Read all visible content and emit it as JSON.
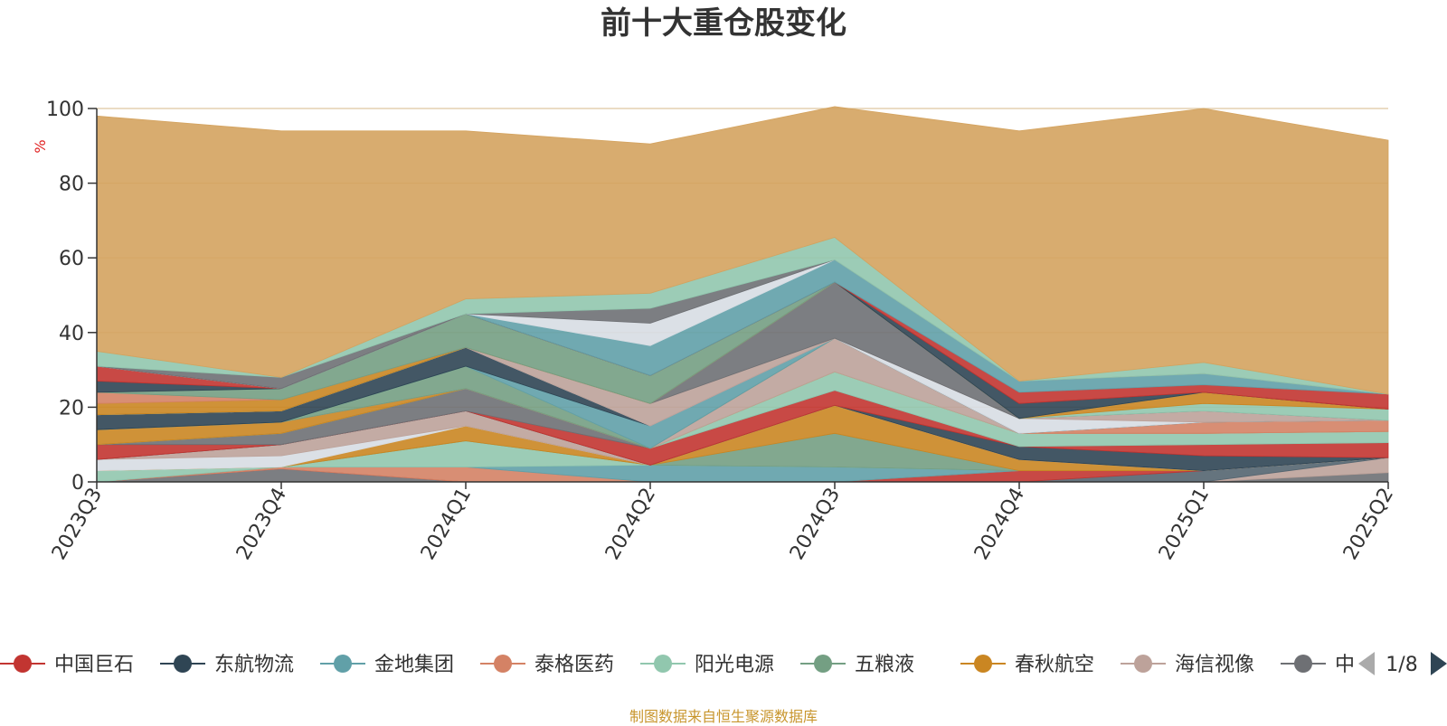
{
  "title": "前十大重仓股变化",
  "source_note": "制图数据来自恒生聚源数据库",
  "legend": {
    "page_indicator": "1/8",
    "prev_icon": "triangle-left-icon",
    "next_icon": "triangle-right-icon",
    "items": [
      {
        "label": "中国巨石",
        "color": "#c23531"
      },
      {
        "label": "东航物流",
        "color": "#2f4554"
      },
      {
        "label": "金地集团",
        "color": "#61a0a8"
      },
      {
        "label": "泰格医药",
        "color": "#d48265"
      },
      {
        "label": "阳光电源",
        "color": "#91c7ae"
      },
      {
        "label": "五粮液",
        "color": "#749f83"
      },
      {
        "label": "春秋航空",
        "color": "#ca8622"
      },
      {
        "label": "海信视像",
        "color": "#bda29a"
      },
      {
        "label": "中",
        "color": "#6e7074"
      }
    ]
  },
  "chart_data": {
    "type": "area",
    "stacked": true,
    "title": "前十大重仓股变化",
    "ylabel": "%",
    "ylim": [
      0,
      100
    ],
    "yticks": [
      0,
      20,
      40,
      60,
      80,
      100
    ],
    "grid": true,
    "legend_position": "bottom",
    "categories": [
      "2023Q3",
      "2023Q4",
      "2024Q1",
      "2024Q2",
      "2024Q3",
      "2024Q4",
      "2025Q1",
      "2025Q2"
    ],
    "series": [
      {
        "color": "#6e7074",
        "values": [
          0,
          3.5,
          0,
          0,
          0,
          0,
          0,
          2.5
        ]
      },
      {
        "color": "#bda29a",
        "values": [
          0,
          0,
          0,
          0,
          0,
          0,
          0,
          4
        ]
      },
      {
        "color": "#546570",
        "values": [
          0,
          0,
          0,
          0,
          0,
          0,
          3,
          0
        ]
      },
      {
        "color": "#c23531",
        "values": [
          0,
          0,
          0,
          0,
          0,
          3,
          0,
          0
        ]
      },
      {
        "color": "#d48265",
        "values": [
          0,
          0.5,
          4,
          0,
          0,
          0,
          0,
          0
        ]
      },
      {
        "color": "#61a0a8",
        "values": [
          0,
          0,
          0,
          4.5,
          4,
          0,
          0,
          0
        ]
      },
      {
        "color": "#91c7ae",
        "values": [
          3,
          0,
          7,
          0,
          0,
          0,
          0,
          0
        ]
      },
      {
        "color": "#749f83",
        "values": [
          0,
          0,
          0,
          0,
          9,
          0,
          0,
          0
        ]
      },
      {
        "color": "#ca8622",
        "values": [
          0,
          0,
          4,
          0,
          7.5,
          3,
          0,
          0
        ]
      },
      {
        "color": "#d7dde3",
        "values": [
          3,
          3,
          0,
          0,
          0,
          0,
          0,
          0
        ]
      },
      {
        "color": "#bda29a",
        "values": [
          0,
          3,
          4,
          0,
          0,
          0,
          0,
          0
        ]
      },
      {
        "color": "#2f4554",
        "values": [
          0,
          0,
          0,
          0,
          0,
          3.5,
          4,
          0
        ]
      },
      {
        "color": "#c23531",
        "values": [
          4,
          0,
          0,
          4.5,
          4,
          0,
          3,
          4
        ]
      },
      {
        "color": "#6e7074",
        "values": [
          0,
          3,
          6,
          0,
          0,
          0,
          0,
          0
        ]
      },
      {
        "color": "#91c7ae",
        "values": [
          0,
          0,
          0,
          0,
          5,
          3.5,
          3,
          3
        ]
      },
      {
        "color": "#ca8622",
        "values": [
          4,
          3,
          0,
          0,
          0,
          0,
          0,
          0
        ]
      },
      {
        "color": "#bda29a",
        "values": [
          0,
          0,
          0,
          0,
          9,
          0,
          0,
          0
        ]
      },
      {
        "color": "#d48265",
        "values": [
          0,
          0,
          0,
          0,
          0,
          0,
          3,
          3
        ]
      },
      {
        "color": "#749f83",
        "values": [
          0,
          0,
          6,
          0,
          0,
          0,
          0,
          0
        ]
      },
      {
        "color": "#61a0a8",
        "values": [
          0,
          0,
          0,
          6,
          0,
          0,
          0,
          0
        ]
      },
      {
        "color": "#2f4554",
        "values": [
          4,
          3,
          5,
          0,
          0,
          0,
          0,
          0
        ]
      },
      {
        "color": "#d7dde3",
        "values": [
          0,
          0,
          0,
          0,
          0,
          4,
          0,
          0
        ]
      },
      {
        "color": "#bda29a",
        "values": [
          0,
          0,
          0,
          6,
          0,
          0,
          3,
          0
        ]
      },
      {
        "color": "#6e7074",
        "values": [
          0,
          0,
          0,
          0,
          15,
          0,
          0,
          0
        ]
      },
      {
        "color": "#91c7ae",
        "values": [
          0,
          0,
          0,
          0,
          0,
          0,
          2,
          3
        ]
      },
      {
        "color": "#ca8622",
        "values": [
          3,
          3,
          0,
          0,
          0,
          0,
          3,
          0
        ]
      },
      {
        "color": "#d48265",
        "values": [
          3,
          0,
          0,
          0,
          0,
          0,
          0,
          0
        ]
      },
      {
        "color": "#749f83",
        "values": [
          0,
          3,
          9,
          7.5,
          0,
          0,
          0,
          0
        ]
      },
      {
        "color": "#2f4554",
        "values": [
          3,
          0,
          0,
          0,
          0,
          4,
          0,
          0
        ]
      },
      {
        "color": "#c23531",
        "values": [
          4,
          0,
          0,
          0,
          0,
          3,
          2,
          4
        ]
      },
      {
        "color": "#61a0a8",
        "values": [
          0,
          0,
          0,
          8,
          6,
          3,
          3,
          0
        ]
      },
      {
        "color": "#d7dde3",
        "values": [
          0,
          0,
          0,
          6,
          0,
          0,
          0,
          0
        ]
      },
      {
        "color": "#6e7074",
        "values": [
          0,
          3,
          0,
          4,
          0,
          0,
          0,
          0
        ]
      },
      {
        "color": "#91c7ae",
        "values": [
          4,
          0,
          4,
          4,
          6,
          0,
          3,
          0
        ]
      },
      {
        "color": "#d4a35f",
        "values": [
          63,
          66,
          45,
          40,
          35,
          67,
          68,
          68
        ]
      }
    ]
  }
}
